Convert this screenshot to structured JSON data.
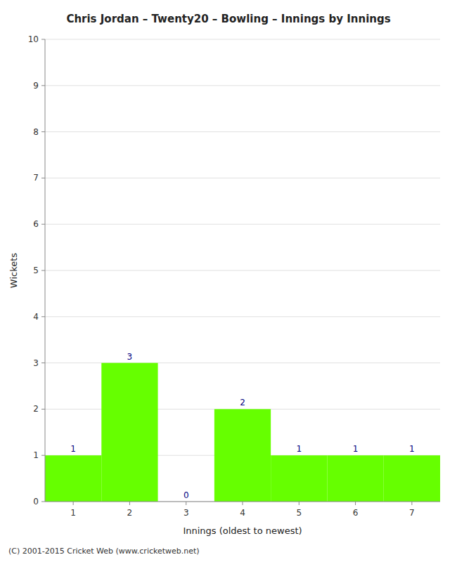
{
  "chart_data": {
    "type": "bar",
    "title": "Chris Jordan – Twenty20 – Bowling – Innings by Innings",
    "x_label": "Innings (oldest to newest)",
    "y_label": "Wickets",
    "footer": "(C) 2001-2015 Cricket Web (www.cricketweb.net)",
    "x": [
      1,
      2,
      3,
      4,
      5,
      6,
      7
    ],
    "values": [
      1,
      3,
      0,
      2,
      1,
      1,
      1
    ],
    "color": "#66ff00",
    "xlim": [
      0.5,
      7.5
    ],
    "xticks": [
      1,
      2,
      3,
      4,
      5,
      6,
      7
    ],
    "ylim": [
      0,
      10
    ],
    "yticks": [
      0,
      1,
      2,
      3,
      4,
      5,
      6,
      7,
      8,
      9,
      10
    ],
    "grid": true,
    "data_labels": true
  }
}
